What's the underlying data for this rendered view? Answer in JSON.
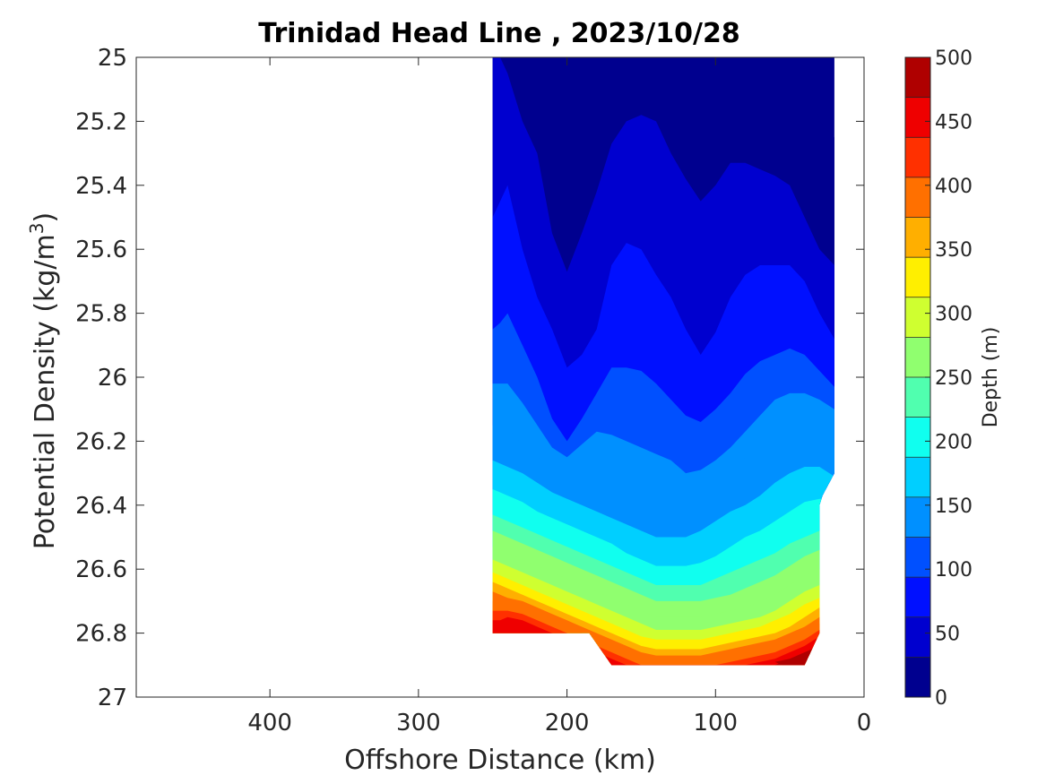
{
  "chart_data": {
    "type": "filled-contour",
    "title": "Trinidad Head Line , 2023/10/28",
    "xlabel": "Offshore Distance (km)",
    "ylabel": "Potential Density (kg/m",
    "ylabel_superscript": "3",
    "ylabel_close": ")",
    "xlim": [
      490,
      0
    ],
    "x_direction": "reversed",
    "ylim": [
      25,
      27
    ],
    "y_direction": "reversed (down)",
    "xticks": [
      400,
      300,
      200,
      100,
      0
    ],
    "yticks": [
      25,
      25.2,
      25.4,
      25.6,
      25.8,
      26,
      26.2,
      26.4,
      26.6,
      26.8,
      27
    ],
    "grid": false,
    "colorbar": {
      "label": "Depth (m)",
      "range": [
        0,
        500
      ],
      "ticks": [
        0,
        50,
        100,
        150,
        200,
        250,
        300,
        350,
        400,
        450,
        500
      ],
      "colors": [
        "#00008f",
        "#0000cf",
        "#0010ff",
        "#0050ff",
        "#0090ff",
        "#00cfff",
        "#10ffef",
        "#50ffaf",
        "#90ff6f",
        "#cfff30",
        "#ffef00",
        "#ffaf00",
        "#ff7000",
        "#ff3000",
        "#ef0000",
        "#af0000"
      ]
    },
    "isobath_depth_m": [
      25,
      50,
      75,
      100,
      125,
      150,
      175,
      200,
      225,
      250,
      275,
      300,
      325,
      350,
      375,
      400,
      425,
      450,
      475
    ],
    "isobaths": [
      {
        "depth": 25,
        "x": [
          250,
          245,
          240,
          230,
          220,
          210,
          200,
          190,
          180,
          170,
          160,
          150,
          140,
          130,
          120,
          110,
          100,
          90,
          80,
          70,
          60,
          50,
          40,
          30,
          20
        ],
        "y": [
          25,
          25,
          25,
          25,
          25,
          25,
          25,
          25,
          25,
          25,
          25,
          25,
          25,
          25,
          25,
          25,
          25,
          25,
          25,
          25,
          25,
          25,
          25.0,
          25.2,
          25.25
        ]
      },
      {
        "depth": 50,
        "x": [
          250,
          245,
          240,
          230,
          220,
          210,
          200,
          190,
          180,
          170,
          160,
          150,
          140,
          130,
          120,
          110,
          100,
          90,
          80,
          70,
          60,
          50,
          40,
          30,
          20
        ],
        "y": [
          25.0,
          25.0,
          25.05,
          25.2,
          25.3,
          25.55,
          25.67,
          25.55,
          25.42,
          25.27,
          25.2,
          25.18,
          25.2,
          25.3,
          25.38,
          25.45,
          25.4,
          25.33,
          25.33,
          25.35,
          25.37,
          25.4,
          25.5,
          25.6,
          25.65
        ]
      },
      {
        "depth": 75,
        "x": [
          250,
          245,
          240,
          230,
          220,
          210,
          200,
          190,
          180,
          170,
          160,
          150,
          140,
          130,
          120,
          110,
          100,
          90,
          80,
          70,
          60,
          50,
          40,
          30,
          20
        ],
        "y": [
          25.5,
          25.45,
          25.4,
          25.6,
          25.75,
          25.85,
          25.97,
          25.93,
          25.85,
          25.65,
          25.58,
          25.6,
          25.68,
          25.75,
          25.85,
          25.93,
          25.86,
          25.75,
          25.68,
          25.65,
          25.65,
          25.65,
          25.7,
          25.8,
          25.88
        ]
      },
      {
        "depth": 100,
        "x": [
          250,
          245,
          240,
          230,
          220,
          210,
          200,
          190,
          180,
          170,
          160,
          150,
          140,
          130,
          120,
          110,
          100,
          90,
          80,
          70,
          60,
          50,
          40,
          30,
          20
        ],
        "y": [
          25.85,
          25.83,
          25.8,
          25.9,
          26.0,
          26.13,
          26.2,
          26.13,
          26.05,
          25.97,
          25.97,
          25.98,
          26.02,
          26.07,
          26.12,
          26.14,
          26.1,
          26.05,
          25.99,
          25.95,
          25.93,
          25.91,
          25.93,
          25.98,
          26.03
        ]
      },
      {
        "depth": 125,
        "x": [
          250,
          245,
          240,
          230,
          220,
          210,
          200,
          190,
          180,
          170,
          160,
          150,
          140,
          130,
          120,
          110,
          100,
          90,
          80,
          70,
          60,
          50,
          40,
          30,
          20
        ],
        "y": [
          26.02,
          26.02,
          26.02,
          26.08,
          26.15,
          26.22,
          26.25,
          26.21,
          26.17,
          26.18,
          26.2,
          26.22,
          26.24,
          26.26,
          26.3,
          26.29,
          26.26,
          26.22,
          26.17,
          26.12,
          26.07,
          26.05,
          26.05,
          26.07,
          26.1
        ]
      },
      {
        "depth": 150,
        "x": [
          250,
          245,
          240,
          230,
          220,
          210,
          200,
          190,
          180,
          170,
          160,
          150,
          140,
          130,
          120,
          110,
          100,
          90,
          80,
          70,
          60,
          50,
          40,
          30,
          20
        ],
        "y": [
          26.15,
          26.15,
          26.16,
          26.21,
          26.25,
          26.28,
          26.3,
          26.3,
          26.31,
          26.33,
          26.35,
          26.37,
          26.38,
          26.4,
          26.39,
          26.37,
          26.33,
          26.3,
          26.25,
          26.2,
          26.17,
          26.15,
          26.17,
          26.2,
          26.22
        ]
      },
      {
        "depth": 175,
        "x": [
          250,
          245,
          240,
          230,
          220,
          210,
          200,
          190,
          180,
          170,
          160,
          150,
          140,
          130,
          120,
          110,
          100,
          90,
          80,
          70,
          60,
          50,
          40,
          30,
          20
        ],
        "y": [
          26.26,
          26.27,
          26.28,
          26.3,
          26.33,
          26.36,
          26.38,
          26.4,
          26.42,
          26.44,
          26.46,
          26.48,
          26.5,
          26.5,
          26.5,
          26.48,
          26.45,
          26.42,
          26.4,
          26.37,
          26.33,
          26.3,
          26.28,
          26.28,
          26.31
        ]
      },
      {
        "depth": 200,
        "x": [
          250,
          245,
          240,
          230,
          220,
          210,
          200,
          190,
          180,
          170,
          160,
          150,
          140,
          130,
          120,
          110,
          100,
          90,
          80,
          70,
          60,
          50,
          40,
          30
        ],
        "y": [
          26.35,
          26.36,
          26.37,
          26.39,
          26.42,
          26.44,
          26.46,
          26.48,
          26.5,
          26.52,
          26.55,
          26.57,
          26.59,
          26.59,
          26.59,
          26.58,
          26.56,
          26.53,
          26.5,
          26.48,
          26.45,
          26.42,
          26.39,
          26.38
        ]
      },
      {
        "depth": 225,
        "x": [
          250,
          245,
          240,
          230,
          220,
          210,
          200,
          190,
          180,
          170,
          160,
          150,
          140,
          130,
          120,
          110,
          100,
          90,
          80,
          70,
          60,
          50,
          40,
          30
        ],
        "y": [
          26.43,
          26.44,
          26.45,
          26.47,
          26.49,
          26.51,
          26.53,
          26.55,
          26.57,
          26.59,
          26.61,
          26.63,
          26.65,
          26.65,
          26.65,
          26.65,
          26.63,
          26.61,
          26.59,
          26.57,
          26.55,
          26.52,
          26.5,
          26.48
        ]
      },
      {
        "depth": 250,
        "x": [
          250,
          245,
          240,
          230,
          220,
          210,
          200,
          190,
          180,
          170,
          160,
          150,
          140,
          130,
          120,
          110,
          100,
          90,
          80,
          70,
          60,
          50,
          40,
          30
        ],
        "y": [
          26.48,
          26.49,
          26.5,
          26.52,
          26.54,
          26.56,
          26.58,
          26.6,
          26.62,
          26.64,
          26.66,
          26.68,
          26.7,
          26.7,
          26.7,
          26.7,
          26.69,
          26.68,
          26.66,
          26.64,
          26.62,
          26.59,
          26.56,
          26.54
        ]
      },
      {
        "depth": 275,
        "x": [
          250,
          245,
          240,
          230,
          220,
          210,
          200,
          190,
          180,
          170,
          160,
          150,
          140,
          130,
          120,
          110,
          100,
          90,
          80,
          70,
          60,
          50,
          40,
          30
        ],
        "y": [
          26.53,
          26.54,
          26.55,
          26.57,
          26.59,
          26.61,
          26.63,
          26.65,
          26.67,
          26.69,
          26.71,
          26.73,
          26.75,
          26.75,
          26.75,
          26.75,
          26.74,
          26.73,
          26.72,
          26.7,
          26.68,
          26.65,
          26.62,
          26.6
        ]
      },
      {
        "depth": 300,
        "x": [
          250,
          245,
          240,
          230,
          220,
          210,
          200,
          190,
          180,
          170,
          160,
          150,
          140,
          130,
          120,
          110,
          100,
          90,
          80,
          70,
          60,
          50,
          40,
          30
        ],
        "y": [
          26.57,
          26.58,
          26.59,
          26.61,
          26.63,
          26.65,
          26.67,
          26.69,
          26.71,
          26.73,
          26.75,
          26.77,
          26.79,
          26.79,
          26.79,
          26.79,
          26.78,
          26.77,
          26.76,
          26.75,
          26.73,
          26.7,
          26.67,
          26.65
        ]
      },
      {
        "depth": 325,
        "x": [
          250,
          245,
          240,
          230,
          220,
          210,
          200,
          190,
          180,
          170,
          160,
          150,
          140,
          130,
          120,
          110,
          100,
          90,
          80,
          70,
          60,
          50,
          40,
          30
        ],
        "y": [
          26.61,
          26.62,
          26.63,
          26.65,
          26.67,
          26.69,
          26.71,
          26.73,
          26.75,
          26.77,
          26.79,
          26.81,
          26.82,
          26.82,
          26.82,
          26.82,
          26.81,
          26.8,
          26.79,
          26.78,
          26.76,
          26.74,
          26.71,
          26.69
        ]
      },
      {
        "depth": 350,
        "x": [
          250,
          245,
          240,
          230,
          220,
          210,
          200,
          190,
          180,
          170,
          160,
          150,
          140,
          130,
          120,
          110,
          100,
          90,
          80,
          70,
          60,
          50,
          40,
          30
        ],
        "y": [
          26.64,
          26.65,
          26.66,
          26.68,
          26.7,
          26.72,
          26.74,
          26.76,
          26.78,
          26.8,
          26.82,
          26.84,
          26.85,
          26.85,
          26.85,
          26.85,
          26.84,
          26.83,
          26.82,
          26.81,
          26.8,
          26.78,
          26.75,
          26.72
        ]
      },
      {
        "depth": 375,
        "x": [
          250,
          245,
          240,
          230,
          220,
          210,
          200,
          190,
          180,
          170,
          160,
          150,
          140,
          130,
          120,
          110,
          100,
          90,
          80,
          70,
          60,
          50,
          40,
          30
        ],
        "y": [
          26.67,
          26.68,
          26.69,
          26.7,
          26.72,
          26.74,
          26.76,
          26.78,
          26.8,
          26.82,
          26.84,
          26.86,
          26.87,
          26.87,
          26.87,
          26.87,
          26.86,
          26.85,
          26.84,
          26.83,
          26.82,
          26.8,
          26.78,
          26.75
        ]
      },
      {
        "depth": 400,
        "x": [
          250,
          245,
          240,
          230,
          220,
          210,
          200,
          190,
          180,
          170,
          160,
          150,
          140,
          130,
          120,
          110,
          100,
          90,
          80,
          70,
          60,
          50,
          40,
          30
        ],
        "y": [
          26.7,
          26.71,
          26.71,
          26.72,
          26.74,
          26.76,
          26.78,
          26.8,
          26.82,
          26.84,
          26.86,
          26.88,
          26.89,
          26.89,
          26.89,
          26.89,
          26.88,
          26.87,
          26.86,
          26.85,
          26.84,
          26.82,
          26.8,
          26.77
        ]
      },
      {
        "depth": 425,
        "x": [
          250,
          245,
          240,
          230,
          220,
          210,
          200,
          190,
          180,
          170,
          160,
          150,
          140,
          130,
          120,
          110,
          100,
          90,
          80,
          70,
          60,
          50,
          40,
          30
        ],
        "y": [
          26.73,
          26.73,
          26.73,
          26.74,
          26.76,
          26.78,
          26.8,
          26.82,
          26.84,
          26.86,
          26.88,
          26.9,
          26.9,
          26.9,
          26.9,
          26.9,
          26.9,
          26.89,
          26.88,
          26.87,
          26.86,
          26.84,
          26.82,
          26.79
        ]
      },
      {
        "depth": 450,
        "x": [
          250,
          245,
          240,
          230,
          220,
          210,
          200,
          190,
          180,
          170,
          160,
          150,
          140,
          130,
          120,
          110,
          100,
          90,
          80,
          70,
          60,
          50,
          40,
          30
        ],
        "y": [
          26.76,
          26.76,
          26.75,
          26.76,
          26.78,
          26.8,
          26.82,
          26.84,
          26.86,
          26.88,
          26.9,
          26.9,
          26.9,
          26.9,
          26.9,
          26.9,
          26.9,
          26.9,
          26.9,
          26.89,
          26.88,
          26.86,
          26.84,
          26.81
        ]
      },
      {
        "depth": 475,
        "x": [
          250,
          245,
          240,
          230,
          220,
          210,
          200,
          190,
          180,
          170,
          160,
          150,
          140,
          130,
          120,
          110,
          100,
          90,
          80,
          70,
          60,
          50,
          40,
          30
        ],
        "y": [
          26.8,
          26.8,
          26.8,
          26.8,
          26.8,
          26.8,
          26.8,
          26.85,
          26.88,
          26.9,
          26.9,
          26.9,
          26.9,
          26.9,
          26.9,
          26.9,
          26.9,
          26.9,
          26.9,
          26.9,
          26.9,
          26.88,
          26.86,
          26.84
        ]
      }
    ],
    "deep_spot": {
      "x": [
        60,
        50,
        40,
        45,
        55
      ],
      "y": [
        26.89,
        26.88,
        26.9,
        26.9,
        26.9
      ],
      "depth": 490
    },
    "data_boundary": {
      "x": [
        250,
        20,
        20,
        28,
        30,
        30,
        40,
        170,
        185,
        250
      ],
      "y": [
        25,
        25,
        26.3,
        26.37,
        26.4,
        26.8,
        26.9,
        26.9,
        26.8,
        26.8
      ]
    }
  }
}
